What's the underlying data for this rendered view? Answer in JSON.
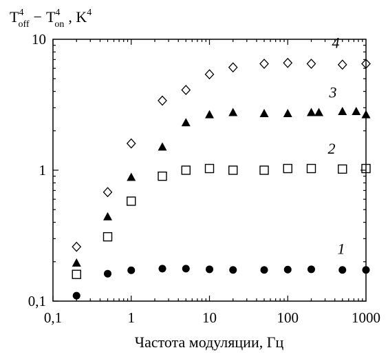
{
  "chart_data": {
    "type": "scatter",
    "title": "",
    "ylabel": {
      "t": "T",
      "sup_off": "4",
      "sub_off": "off",
      "minus": "−",
      "sup_on": "4",
      "sub_on": "on",
      "unit": ", K",
      "unit_sup": "4"
    },
    "xlabel": "Частота модуляции, Гц",
    "xscale": "log",
    "yscale": "log",
    "xlim": [
      0.1,
      1000
    ],
    "ylim": [
      0.1,
      10
    ],
    "x_ticks": [
      {
        "value": 0.1,
        "label": "0,1"
      },
      {
        "value": 1,
        "label": "1"
      },
      {
        "value": 10,
        "label": "10"
      },
      {
        "value": 100,
        "label": "100"
      },
      {
        "value": 1000,
        "label": "1000"
      }
    ],
    "y_ticks": [
      {
        "value": 0.1,
        "label": "0,1"
      },
      {
        "value": 1,
        "label": "1"
      },
      {
        "value": 10,
        "label": "10"
      }
    ],
    "series": [
      {
        "name": "1",
        "marker": "filled-circle",
        "x": [
          0.2,
          0.5,
          1,
          2.5,
          5,
          10,
          20,
          50,
          100,
          200,
          500,
          1000
        ],
        "y": [
          0.11,
          0.162,
          0.172,
          0.177,
          0.177,
          0.175,
          0.173,
          0.173,
          0.174,
          0.175,
          0.173,
          0.173
        ]
      },
      {
        "name": "2",
        "marker": "open-square",
        "x": [
          0.2,
          0.5,
          1,
          2.5,
          5,
          10,
          20,
          50,
          100,
          200,
          500,
          1000
        ],
        "y": [
          0.16,
          0.31,
          0.58,
          0.9,
          1.0,
          1.03,
          1.0,
          1.0,
          1.03,
          1.03,
          1.02,
          1.03
        ]
      },
      {
        "name": "3",
        "marker": "filled-triangle",
        "x": [
          0.2,
          0.5,
          1,
          2.5,
          5,
          10,
          20,
          50,
          100,
          200,
          250,
          500,
          750,
          1000
        ],
        "y": [
          0.195,
          0.44,
          0.88,
          1.5,
          2.3,
          2.65,
          2.75,
          2.7,
          2.7,
          2.75,
          2.75,
          2.8,
          2.8,
          2.65
        ]
      },
      {
        "name": "4",
        "marker": "open-diamond",
        "x": [
          0.2,
          0.5,
          1,
          2.5,
          5,
          10,
          20,
          50,
          100,
          200,
          500,
          1000
        ],
        "y": [
          0.26,
          0.68,
          1.6,
          3.4,
          4.1,
          5.4,
          6.1,
          6.5,
          6.6,
          6.5,
          6.4,
          6.5
        ]
      }
    ]
  }
}
